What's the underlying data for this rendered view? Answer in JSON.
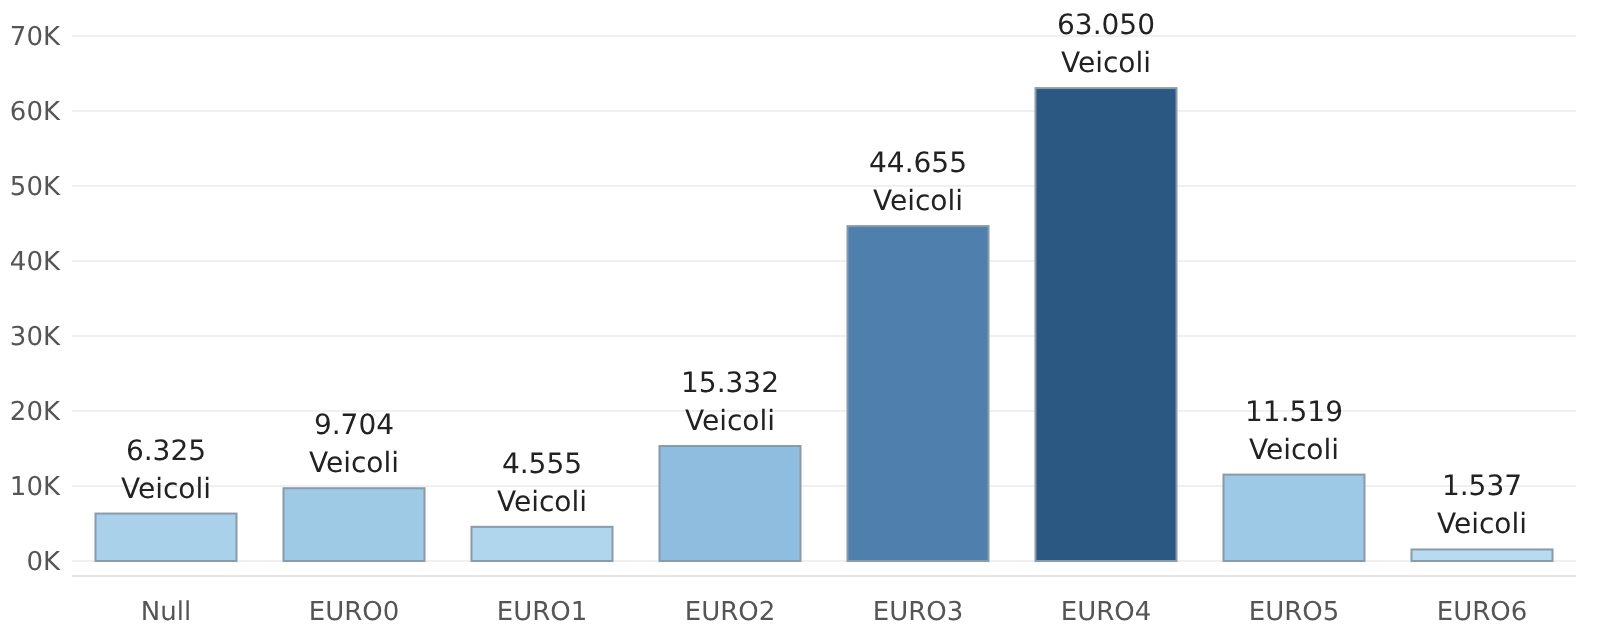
{
  "chart_data": {
    "type": "bar",
    "categories": [
      "Null",
      "EURO0",
      "EURO1",
      "EURO2",
      "EURO3",
      "EURO4",
      "EURO5",
      "EURO6"
    ],
    "values": [
      6325,
      9704,
      4555,
      15332,
      44655,
      63050,
      11519,
      1537
    ],
    "colors": [
      "#a9d1ea",
      "#9ecae6",
      "#b0d6ee",
      "#8fbde0",
      "#4e7fad",
      "#2b5783",
      "#9dc8e6",
      "#b7dcf1"
    ],
    "value_labels": [
      "6.325 Veicoli",
      "9.704 Veicoli",
      "4.555 Veicoli",
      "15.332 Veicoli",
      "44.655 Veicoli",
      "63.050 Veicoli",
      "11.519 Veicoli",
      "1.537 Veicoli"
    ],
    "ylim": [
      -2000,
      70000
    ],
    "yticks": [
      {
        "value": 0,
        "label": "0K"
      },
      {
        "value": 10000,
        "label": "10K"
      },
      {
        "value": 20000,
        "label": "20K"
      },
      {
        "value": 30000,
        "label": "30K"
      },
      {
        "value": 40000,
        "label": "40K"
      },
      {
        "value": 50000,
        "label": "50K"
      },
      {
        "value": 60000,
        "label": "60K"
      },
      {
        "value": 70000,
        "label": "70K"
      }
    ],
    "grid": "y"
  }
}
